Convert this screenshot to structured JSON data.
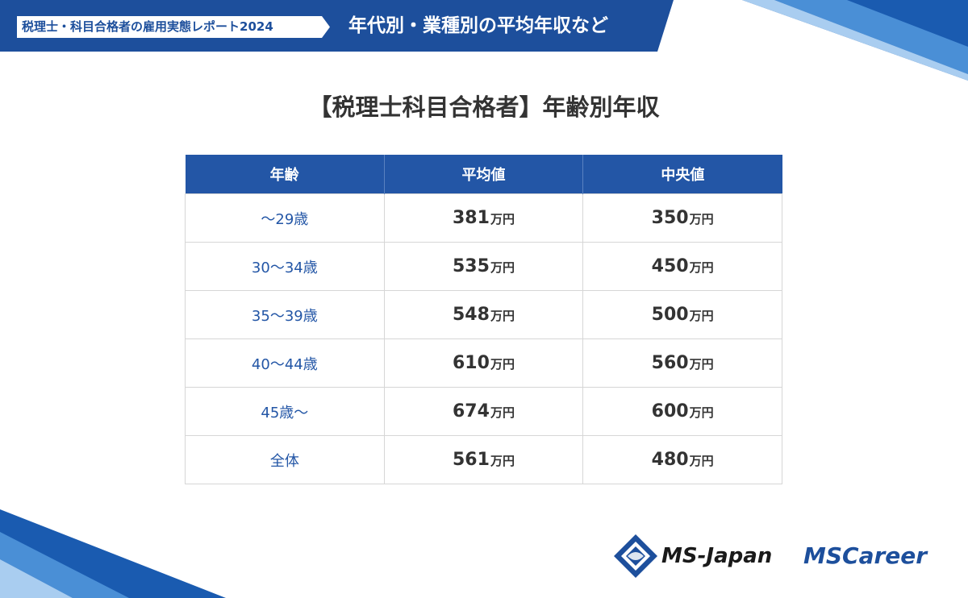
{
  "header": {
    "tag": "税理士・科目合格者の雇用実態レポート2024",
    "title": "年代別・業種別の平均年収など"
  },
  "main_title": "【税理士科目合格者】年齢別年収",
  "table": {
    "headers": [
      "年齢",
      "平均値",
      "中央値"
    ],
    "rows": [
      {
        "age": "～29歳",
        "avg": "381",
        "avg_unit": "万円",
        "median": "350",
        "median_unit": "万円"
      },
      {
        "age": "30～34歳",
        "avg": "535",
        "avg_unit": "万円",
        "median": "450",
        "median_unit": "万円"
      },
      {
        "age": "35～39歳",
        "avg": "548",
        "avg_unit": "万円",
        "median": "500",
        "median_unit": "万円"
      },
      {
        "age": "40～44歳",
        "avg": "610",
        "avg_unit": "万円",
        "median": "560",
        "median_unit": "万円"
      },
      {
        "age": "45歳～",
        "avg": "674",
        "avg_unit": "万円",
        "median": "600",
        "median_unit": "万円"
      },
      {
        "age": "全体",
        "avg": "561",
        "avg_unit": "万円",
        "median": "480",
        "median_unit": "万円"
      }
    ]
  },
  "logos": {
    "ms_japan": "MS-Japan",
    "ms_career": "MSCareer"
  },
  "colors": {
    "brand_blue": "#1d4f9c",
    "header_blue": "#2356a6"
  }
}
